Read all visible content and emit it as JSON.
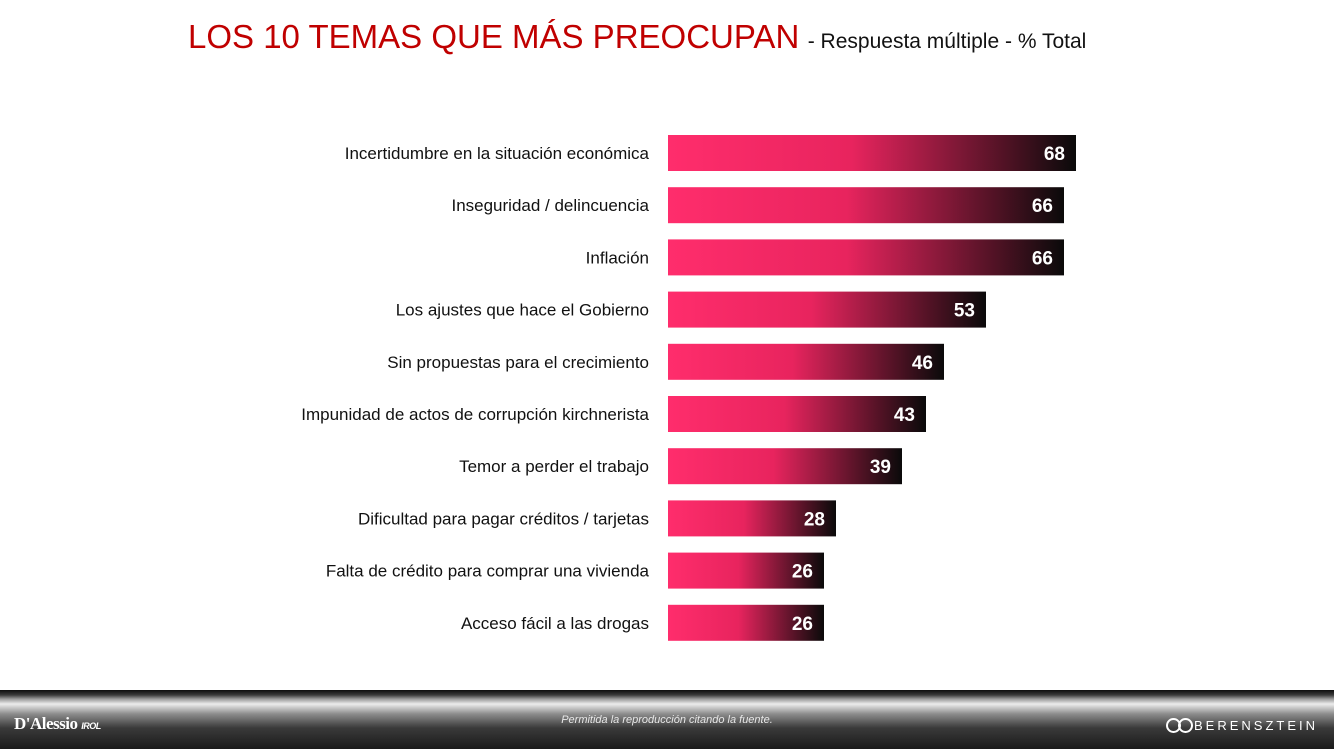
{
  "title": {
    "main": "LOS 10 TEMAS QUE MÁS PREOCUPAN",
    "sub": "- Respuesta múltiple - % Total"
  },
  "chart_data": {
    "type": "bar",
    "orientation": "horizontal",
    "title": "LOS 10 TEMAS QUE MÁS PREOCUPAN",
    "subtitle": "- Respuesta múltiple - % Total",
    "categories": [
      "Incertidumbre en la situación económica",
      "Inseguridad / delincuencia",
      "Inflación",
      "Los ajustes que hace el Gobierno",
      "Sin propuestas para el crecimiento",
      "Impunidad de actos de corrupción kirchnerista",
      "Temor a perder el trabajo",
      "Dificultad para pagar créditos / tarjetas",
      "Falta de crédito para comprar una vivienda",
      "Acceso fácil a las drogas"
    ],
    "values": [
      68,
      66,
      66,
      53,
      46,
      43,
      39,
      28,
      26,
      26
    ],
    "grid": false,
    "legend": "none",
    "bar_gradient": [
      "#ff2d6c",
      "#e8245e",
      "#0a0a0a"
    ],
    "label_color": "#ffffff"
  },
  "footer": {
    "left_logo": "D'Alessio",
    "left_logo_suffix": "IROL",
    "center_text": "Permitida la reproducción citando la fuente.",
    "right_logo": "BERENSZTEIN",
    "right_logo_icon": "berensztein-circles-icon"
  }
}
